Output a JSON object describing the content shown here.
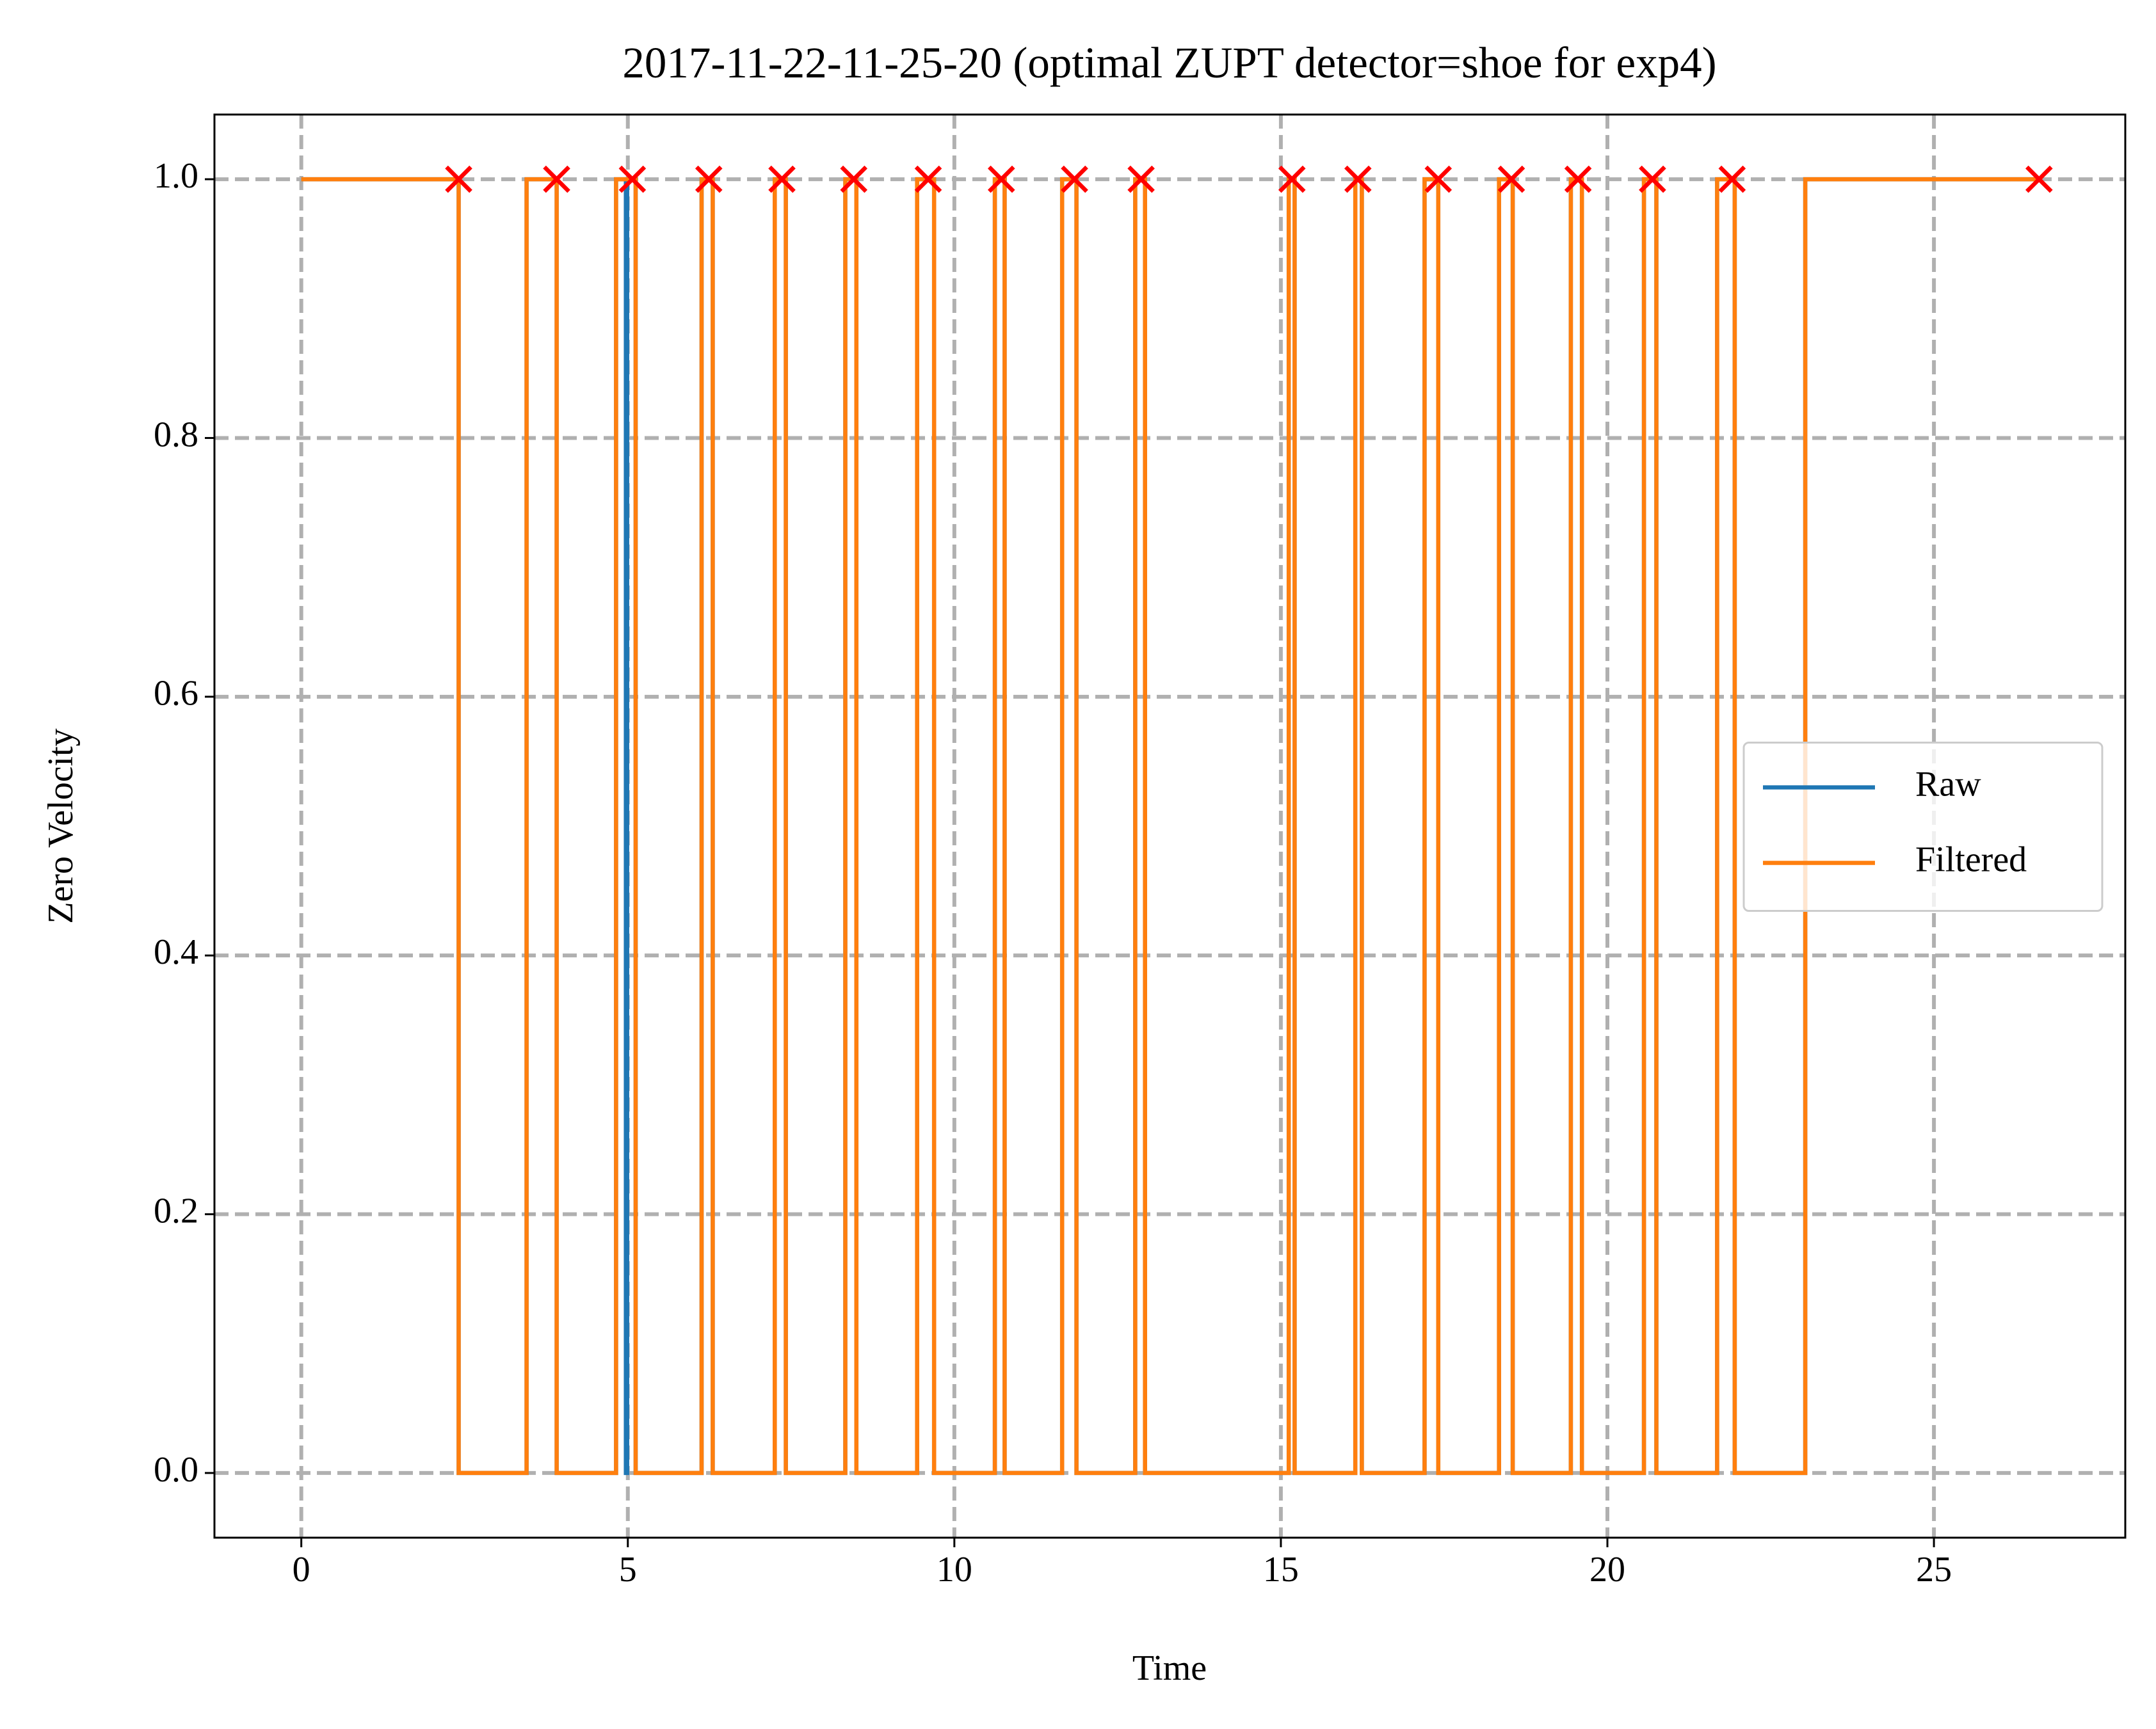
{
  "chart_data": {
    "type": "line",
    "title": "2017-11-22-11-25-20 (optimal ZUPT detector=shoe for exp4)",
    "xlabel": "Time",
    "ylabel": "Zero Velocity",
    "xlim": [
      -1.33,
      27.93
    ],
    "ylim": [
      -0.05,
      1.05
    ],
    "xticks": [
      0,
      5,
      10,
      15,
      20,
      25
    ],
    "yticks": [
      {
        "value": 0,
        "label": "0.0"
      },
      0.2,
      0.4,
      0.6,
      0.8,
      {
        "value": 1,
        "label": "1.0"
      }
    ],
    "grid": true,
    "legend": "center right",
    "series": [
      {
        "name": "Raw",
        "color": "#1f77b4",
        "x": [
          0,
          2.41,
          2.41,
          3.45,
          3.45,
          3.91,
          3.91,
          4.82,
          4.82,
          4.97,
          4.97,
          4.99,
          4.99,
          5.12,
          5.12,
          6.13,
          6.13,
          6.3,
          6.3,
          7.25,
          7.25,
          7.42,
          7.42,
          8.33,
          8.33,
          8.5,
          8.5,
          9.43,
          9.43,
          9.69,
          9.69,
          10.62,
          10.62,
          10.77,
          10.77,
          11.65,
          11.65,
          11.87,
          11.87,
          12.77,
          12.77,
          12.92,
          12.92,
          15.12,
          15.12,
          15.21,
          15.21,
          16.14,
          16.14,
          16.24,
          16.24,
          17.2,
          17.2,
          17.41,
          17.41,
          18.34,
          18.34,
          18.55,
          18.55,
          19.44,
          19.44,
          19.61,
          19.61,
          20.56,
          20.56,
          20.75,
          20.75,
          21.68,
          21.68,
          21.95,
          21.95,
          23.03,
          23.03,
          26.6
        ],
        "values": [
          1,
          1,
          0,
          0,
          1,
          1,
          0,
          0,
          1,
          1,
          0,
          0,
          1,
          1,
          0,
          0,
          1,
          1,
          0,
          0,
          1,
          1,
          0,
          0,
          1,
          1,
          0,
          0,
          1,
          1,
          0,
          0,
          1,
          1,
          0,
          0,
          1,
          1,
          0,
          0,
          1,
          1,
          0,
          0,
          1,
          1,
          0,
          0,
          1,
          1,
          0,
          0,
          1,
          1,
          0,
          0,
          1,
          1,
          0,
          0,
          1,
          1,
          0,
          0,
          1,
          1,
          0,
          0,
          1,
          1,
          0,
          0,
          1,
          1
        ]
      },
      {
        "name": "Filtered",
        "color": "#ff7f0e",
        "x": [
          0,
          2.41,
          2.41,
          3.45,
          3.45,
          3.91,
          3.91,
          4.82,
          4.82,
          5.12,
          5.12,
          6.13,
          6.13,
          6.3,
          6.3,
          7.25,
          7.25,
          7.42,
          7.42,
          8.33,
          8.33,
          8.5,
          8.5,
          9.43,
          9.43,
          9.69,
          9.69,
          10.62,
          10.62,
          10.77,
          10.77,
          11.65,
          11.65,
          11.87,
          11.87,
          12.77,
          12.77,
          12.92,
          12.92,
          15.12,
          15.12,
          15.21,
          15.21,
          16.14,
          16.14,
          16.24,
          16.24,
          17.2,
          17.2,
          17.41,
          17.41,
          18.34,
          18.34,
          18.55,
          18.55,
          19.44,
          19.44,
          19.61,
          19.61,
          20.56,
          20.56,
          20.75,
          20.75,
          21.68,
          21.68,
          21.95,
          21.95,
          23.03,
          23.03,
          26.6
        ],
        "values": [
          1,
          1,
          0,
          0,
          1,
          1,
          0,
          0,
          1,
          1,
          0,
          0,
          1,
          1,
          0,
          0,
          1,
          1,
          0,
          0,
          1,
          1,
          0,
          0,
          1,
          1,
          0,
          0,
          1,
          1,
          0,
          0,
          1,
          1,
          0,
          0,
          1,
          1,
          0,
          0,
          1,
          1,
          0,
          0,
          1,
          1,
          0,
          0,
          1,
          1,
          0,
          0,
          1,
          1,
          0,
          0,
          1,
          1,
          0,
          0,
          1,
          1,
          0,
          0,
          1,
          1,
          0,
          0,
          1,
          1
        ]
      }
    ],
    "markers": {
      "color": "#ff0000",
      "x": [
        2.41,
        3.91,
        5.07,
        6.24,
        7.36,
        8.46,
        9.6,
        10.72,
        11.84,
        12.86,
        15.17,
        16.18,
        17.41,
        18.53,
        19.55,
        20.69,
        21.91,
        26.61
      ],
      "values": [
        1,
        1,
        1,
        1,
        1,
        1,
        1,
        1,
        1,
        1,
        1,
        1,
        1,
        1,
        1,
        1,
        1,
        1
      ]
    }
  }
}
